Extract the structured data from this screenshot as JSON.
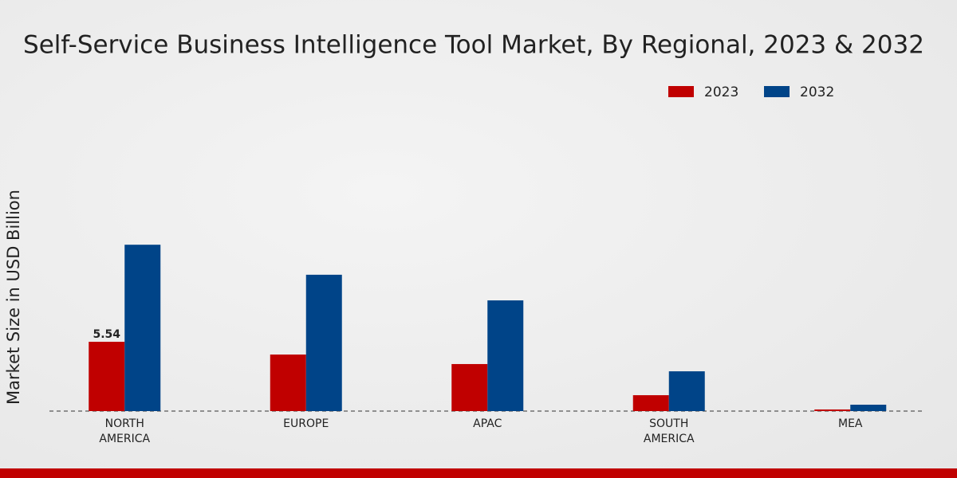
{
  "chart_data": {
    "type": "bar",
    "title": "Self-Service Business Intelligence Tool Market, By Regional, 2023 & 2032",
    "y_label": "Market Size in USD Billion",
    "categories": [
      "NORTH AMERICA",
      "EUROPE",
      "APAC",
      "SOUTH AMERICA",
      "MEA"
    ],
    "series": [
      {
        "name": "2023",
        "color": "#c00000",
        "values": [
          5.54,
          4.52,
          3.76,
          1.27,
          0.13
        ],
        "value_labels": [
          "5.54",
          null,
          null,
          null,
          null
        ]
      },
      {
        "name": "2032",
        "color": "#004488",
        "values": [
          13.3,
          10.9,
          8.85,
          3.18,
          0.51
        ]
      }
    ],
    "ylim": [
      0,
      20
    ],
    "legend": "top-right"
  }
}
